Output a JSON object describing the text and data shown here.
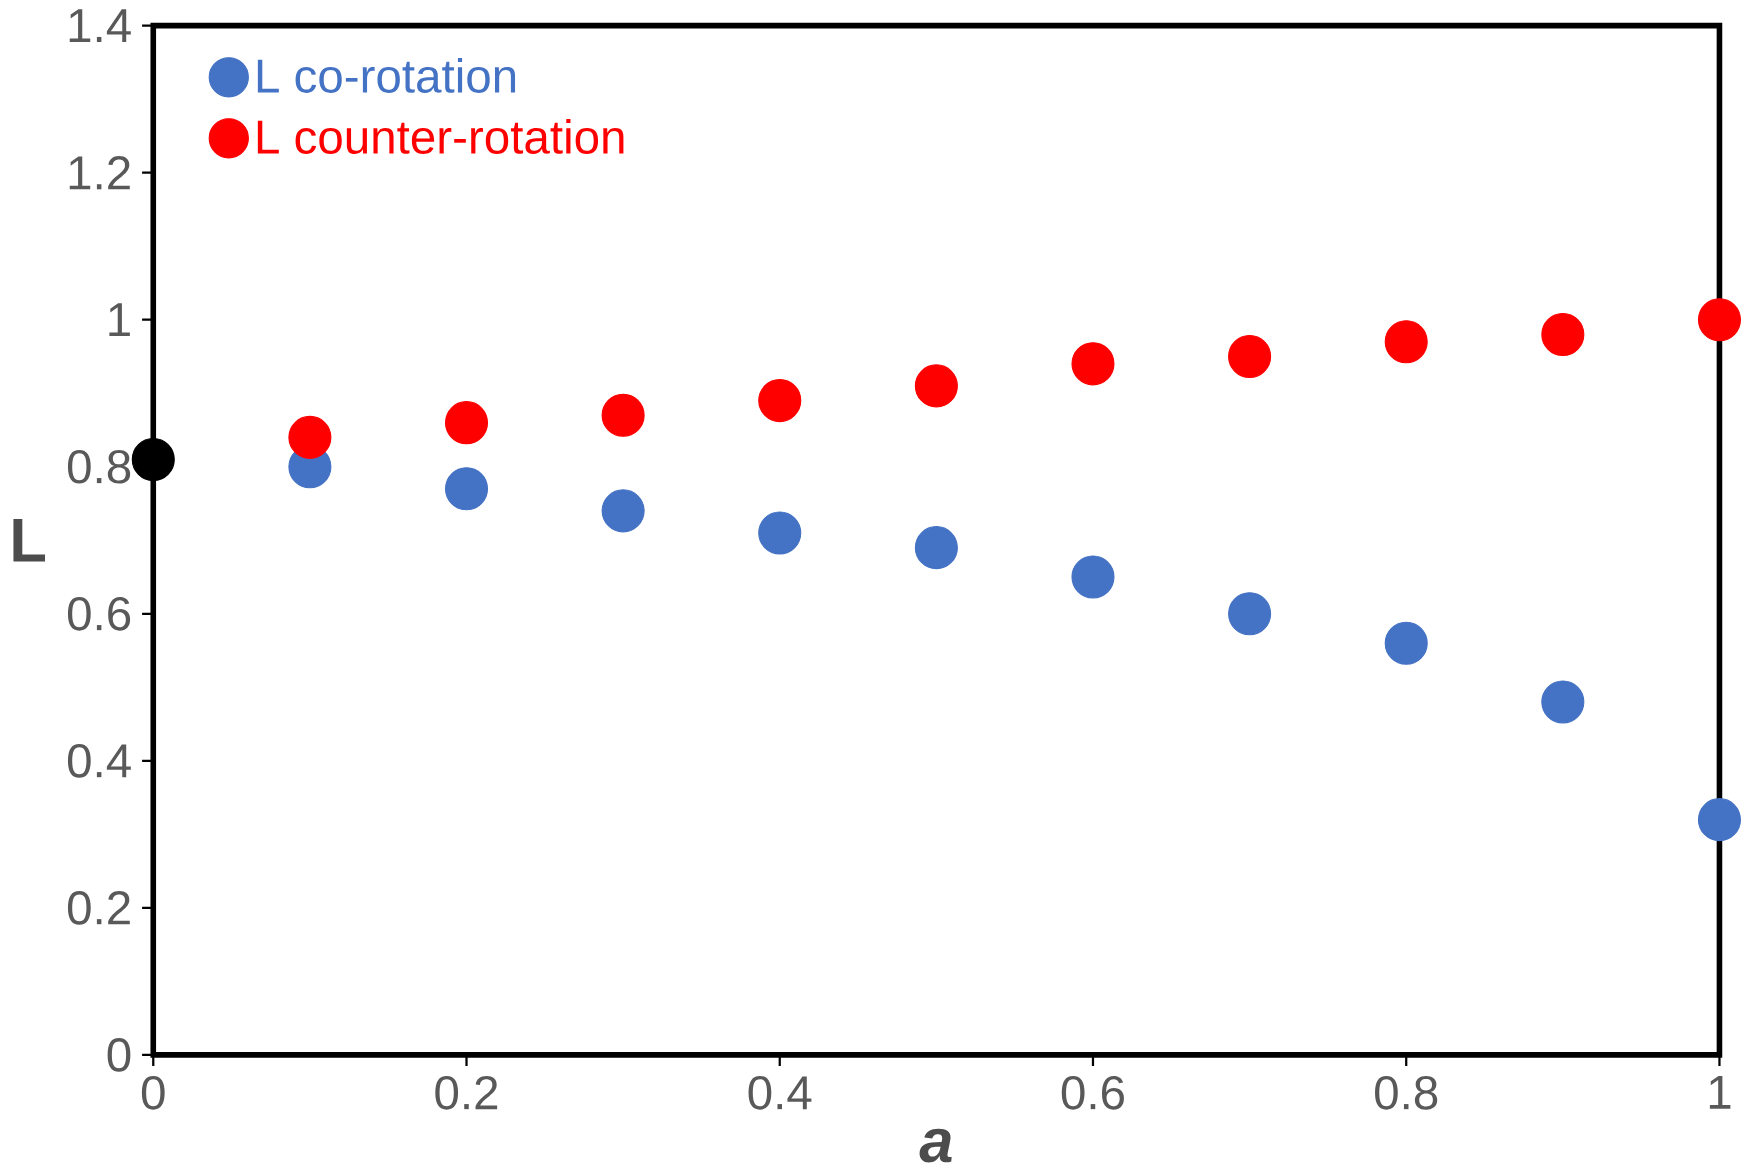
{
  "chart_data": {
    "type": "scatter",
    "xlabel": "*a*",
    "ylabel": "L",
    "x": [
      0,
      0.1,
      0.2,
      0.3,
      0.4,
      0.5,
      0.6,
      0.7,
      0.8,
      0.9,
      1
    ],
    "series": [
      {
        "name": "L co-rotation",
        "color": "#4472c4",
        "values": [
          null,
          0.8,
          0.77,
          0.74,
          0.71,
          0.69,
          0.65,
          0.6,
          0.56,
          0.48,
          0.32
        ]
      },
      {
        "name": "L counter-rotation",
        "color": "#ff0000",
        "values": [
          null,
          0.84,
          0.86,
          0.87,
          0.89,
          0.91,
          0.94,
          0.95,
          0.97,
          0.98,
          1.0
        ]
      },
      {
        "color": "#000000",
        "values": [
          0.81,
          null,
          null,
          null,
          null,
          null,
          null,
          null,
          null,
          null,
          null
        ]
      }
    ],
    "xlim": [
      0,
      1
    ],
    "ylim": [
      0,
      1.4
    ],
    "xticks": [
      0,
      0.2,
      0.4,
      0.6,
      0.8,
      1
    ],
    "yticks": [
      0,
      0.2,
      0.4,
      0.6,
      0.8,
      1,
      1.2,
      1.4
    ],
    "legend": "top left",
    "marker": "circle"
  }
}
